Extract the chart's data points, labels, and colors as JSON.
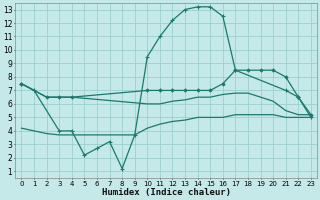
{
  "xlabel": "Humidex (Indice chaleur)",
  "background_color": "#c5e8e8",
  "grid_color": "#9dcece",
  "line_color": "#1a7a6e",
  "line1_x": [
    0,
    1,
    3,
    4,
    5,
    6,
    7,
    8,
    9,
    10,
    11,
    12,
    13,
    14,
    15,
    16,
    17,
    21,
    22,
    23
  ],
  "line1_y": [
    7.5,
    7.0,
    4.0,
    4.0,
    2.2,
    2.7,
    3.2,
    1.2,
    3.7,
    9.5,
    11.0,
    12.2,
    13.0,
    13.2,
    13.2,
    12.5,
    8.5,
    7.0,
    6.5,
    5.0
  ],
  "line2_x": [
    0,
    2,
    3,
    4,
    10,
    11,
    12,
    13,
    14,
    15,
    16,
    17,
    18,
    19,
    20,
    21,
    22,
    23
  ],
  "line2_y": [
    7.5,
    6.5,
    6.5,
    6.5,
    7.0,
    7.0,
    7.0,
    7.0,
    7.0,
    7.0,
    7.5,
    8.5,
    8.5,
    8.5,
    8.5,
    8.0,
    6.5,
    5.2
  ],
  "line3_x": [
    0,
    1,
    2,
    3,
    4,
    10,
    11,
    12,
    13,
    14,
    15,
    16,
    17,
    18,
    19,
    20,
    21,
    22,
    23
  ],
  "line3_y": [
    7.5,
    7.0,
    6.5,
    6.5,
    6.5,
    6.0,
    6.0,
    6.2,
    6.3,
    6.5,
    6.5,
    6.7,
    6.8,
    6.8,
    6.5,
    6.2,
    5.5,
    5.2,
    5.2
  ],
  "line4_x": [
    0,
    1,
    2,
    3,
    4,
    5,
    6,
    7,
    8,
    9,
    10,
    11,
    12,
    13,
    14,
    15,
    16,
    17,
    18,
    19,
    20,
    21,
    22,
    23
  ],
  "line4_y": [
    4.2,
    4.0,
    3.8,
    3.7,
    3.7,
    3.7,
    3.7,
    3.7,
    3.7,
    3.7,
    4.2,
    4.5,
    4.7,
    4.8,
    5.0,
    5.0,
    5.0,
    5.2,
    5.2,
    5.2,
    5.2,
    5.0,
    5.0,
    5.0
  ],
  "ylim": [
    0.5,
    13.5
  ],
  "xlim": [
    -0.5,
    23.5
  ],
  "yticks": [
    1,
    2,
    3,
    4,
    5,
    6,
    7,
    8,
    9,
    10,
    11,
    12,
    13
  ],
  "xticks": [
    0,
    1,
    2,
    3,
    4,
    5,
    6,
    7,
    8,
    9,
    10,
    11,
    12,
    13,
    14,
    15,
    16,
    17,
    18,
    19,
    20,
    21,
    22,
    23
  ]
}
